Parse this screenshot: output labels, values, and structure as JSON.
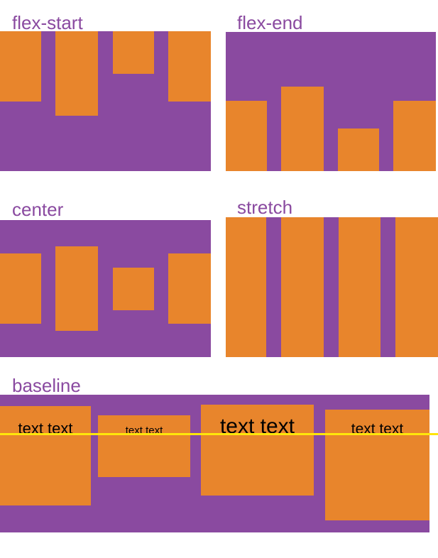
{
  "colors": {
    "container_purple": "#8a4aa0",
    "item_orange": "#e8852c",
    "baseline_line_yellow": "#ffe60a",
    "label_purple": "#8a4aa0",
    "item_text_black": "#000000",
    "background_white": "#ffffff"
  },
  "panels": [
    {
      "label": "flex-start"
    },
    {
      "label": "flex-end"
    },
    {
      "label": "center"
    },
    {
      "label": "stretch"
    },
    {
      "label": "baseline",
      "items": [
        {
          "text": "text text"
        },
        {
          "text": "text text"
        },
        {
          "text": "text text"
        },
        {
          "text": "text text"
        }
      ]
    }
  ]
}
